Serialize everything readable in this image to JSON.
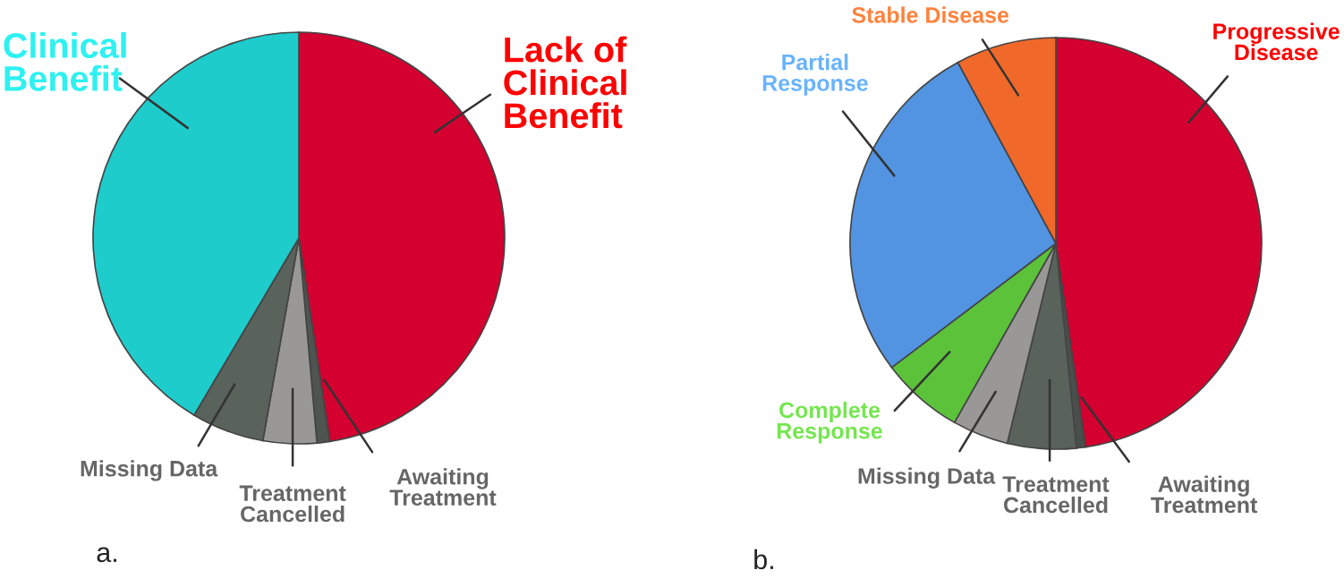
{
  "chart_data": [
    {
      "type": "pie",
      "categories": [
        "Lack of\nClinical\nBenefit",
        "Awaiting\nTreatment",
        "Treatment\nCancelled",
        "Missing Data",
        "Clinical\nBenefit"
      ],
      "values": [
        47.6,
        1.0,
        4.2,
        5.7,
        41.5
      ],
      "colors": [
        "#d4002f",
        "#4e5450",
        "#9a9896",
        "#5a625c",
        "#1ecccc"
      ],
      "annotations": [
        "a."
      ]
    },
    {
      "type": "pie",
      "categories": [
        "Progressive\nDisease",
        "Awaiting\nTreatment",
        "Treatment\nCancelled",
        "Missing Data",
        "Complete\nResponse",
        "Partial\nResponse",
        "Stable Disease"
      ],
      "values": [
        47.7,
        0.7,
        5.4,
        4.4,
        6.5,
        27.4,
        7.9
      ],
      "colors": [
        "#d4002f",
        "#4a4f4c",
        "#5a625c",
        "#9a9896",
        "#5cc23a",
        "#5294e2",
        "#f0692a"
      ],
      "annotations": [
        "b."
      ]
    }
  ]
}
